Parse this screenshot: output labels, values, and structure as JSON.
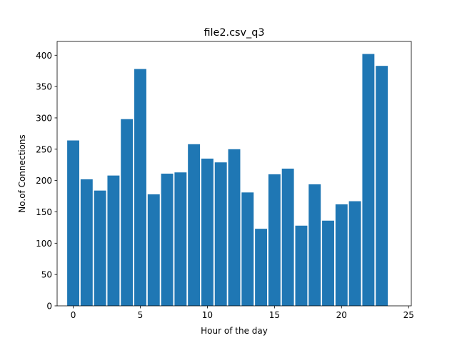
{
  "chart_data": {
    "type": "bar",
    "title": "file2.csv_q3",
    "xlabel": "Hour of the day",
    "ylabel": "No.of Connections",
    "x": [
      0,
      1,
      2,
      3,
      4,
      5,
      6,
      7,
      8,
      9,
      10,
      11,
      12,
      13,
      14,
      15,
      16,
      17,
      18,
      19,
      20,
      21,
      22,
      23
    ],
    "values": [
      264,
      202,
      184,
      208,
      298,
      378,
      178,
      211,
      213,
      258,
      235,
      229,
      250,
      181,
      123,
      210,
      219,
      128,
      194,
      136,
      162,
      167,
      402,
      383
    ],
    "xlim": [
      -1.2,
      25.2
    ],
    "ylim": [
      0,
      422
    ],
    "xticks": [
      0,
      5,
      10,
      15,
      20,
      25
    ],
    "yticks": [
      0,
      50,
      100,
      150,
      200,
      250,
      300,
      350,
      400
    ],
    "bar_color": "#1f77b4",
    "grid": false,
    "legend": "none"
  }
}
